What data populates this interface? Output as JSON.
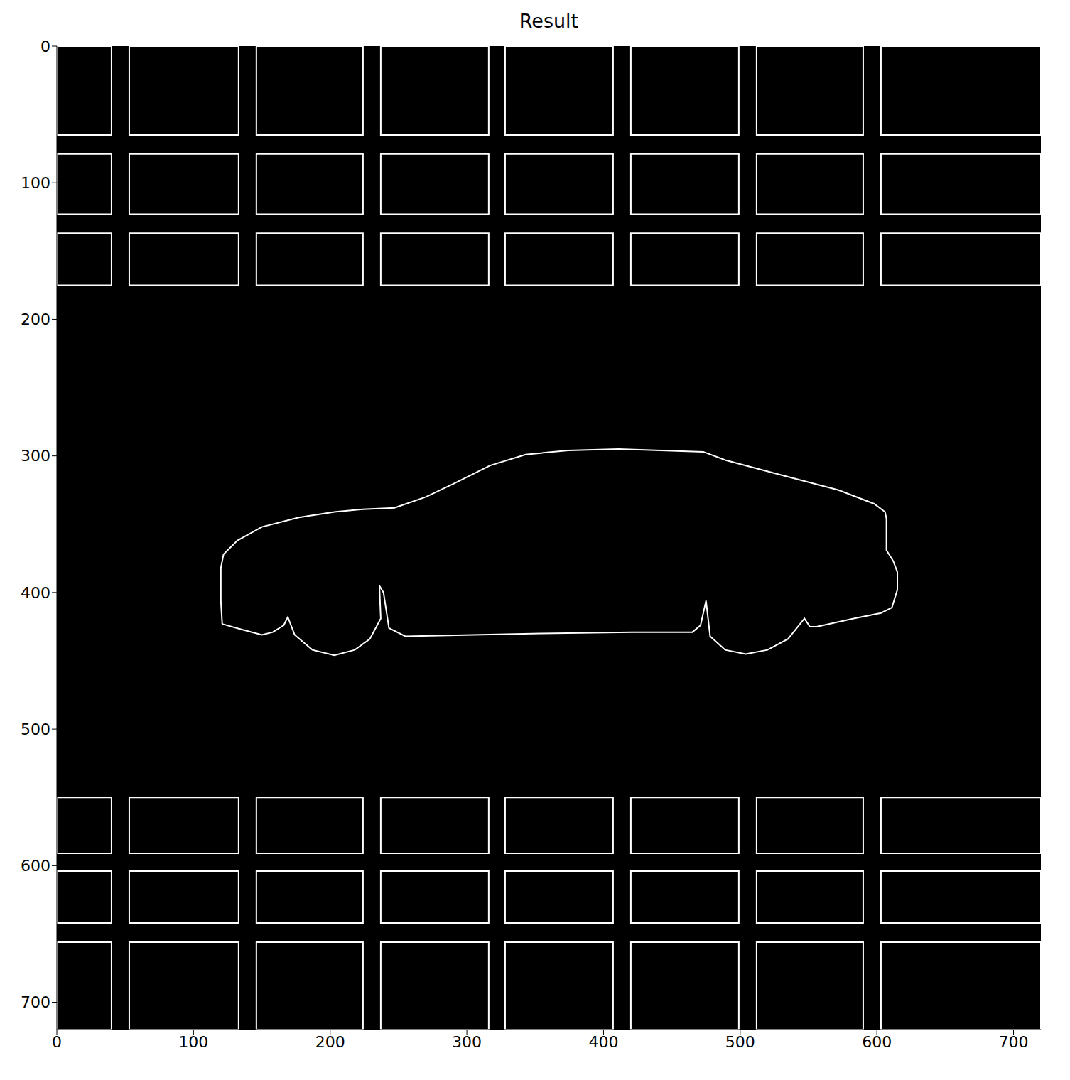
{
  "chart_data": {
    "type": "image",
    "title": "Result",
    "xlim": [
      0,
      720
    ],
    "ylim": [
      720,
      0
    ],
    "xticks": [
      0,
      100,
      200,
      300,
      400,
      500,
      600,
      700
    ],
    "yticks": [
      0,
      100,
      200,
      300,
      400,
      500,
      600,
      700
    ],
    "grid": false,
    "color": "#ffffff",
    "box_columns": [
      [
        0,
        40
      ],
      [
        53,
        133
      ],
      [
        146,
        224
      ],
      [
        237,
        316
      ],
      [
        328,
        407
      ],
      [
        420,
        499
      ],
      [
        512,
        590
      ],
      [
        603,
        720
      ]
    ],
    "box_rows": [
      [
        0,
        65
      ],
      [
        79,
        123
      ],
      [
        137,
        175
      ],
      [
        550,
        591
      ],
      [
        604,
        642
      ],
      [
        656,
        720
      ]
    ],
    "outline": [
      [
        121,
        423
      ],
      [
        120,
        406
      ],
      [
        120,
        382
      ],
      [
        122,
        372
      ],
      [
        132,
        362
      ],
      [
        150,
        352
      ],
      [
        177,
        345
      ],
      [
        203,
        341
      ],
      [
        224,
        339
      ],
      [
        247,
        338
      ],
      [
        270,
        330
      ],
      [
        291,
        320
      ],
      [
        317,
        307
      ],
      [
        343,
        299
      ],
      [
        374,
        296
      ],
      [
        411,
        295
      ],
      [
        473,
        297
      ],
      [
        489,
        303
      ],
      [
        530,
        314
      ],
      [
        572,
        325
      ],
      [
        598,
        335
      ],
      [
        606,
        341
      ],
      [
        607,
        346
      ],
      [
        607,
        369
      ],
      [
        612,
        377
      ],
      [
        615,
        385
      ],
      [
        615,
        398
      ],
      [
        611,
        411
      ],
      [
        603,
        415
      ],
      [
        583,
        419
      ],
      [
        556,
        425
      ],
      [
        551,
        425
      ],
      [
        547,
        419
      ],
      [
        535,
        434
      ],
      [
        520,
        442
      ],
      [
        504,
        445
      ],
      [
        489,
        442
      ],
      [
        478,
        432
      ],
      [
        475,
        406
      ],
      [
        471,
        424
      ],
      [
        465,
        429
      ],
      [
        421,
        429
      ],
      [
        354,
        430
      ],
      [
        255,
        432
      ],
      [
        243,
        426
      ],
      [
        239,
        400
      ],
      [
        236,
        395
      ],
      [
        237,
        419
      ],
      [
        229,
        434
      ],
      [
        218,
        442
      ],
      [
        203,
        446
      ],
      [
        187,
        442
      ],
      [
        174,
        431
      ],
      [
        169,
        418
      ],
      [
        166,
        424
      ],
      [
        158,
        429
      ],
      [
        150,
        431
      ],
      [
        135,
        427
      ],
      [
        121,
        423
      ]
    ]
  }
}
